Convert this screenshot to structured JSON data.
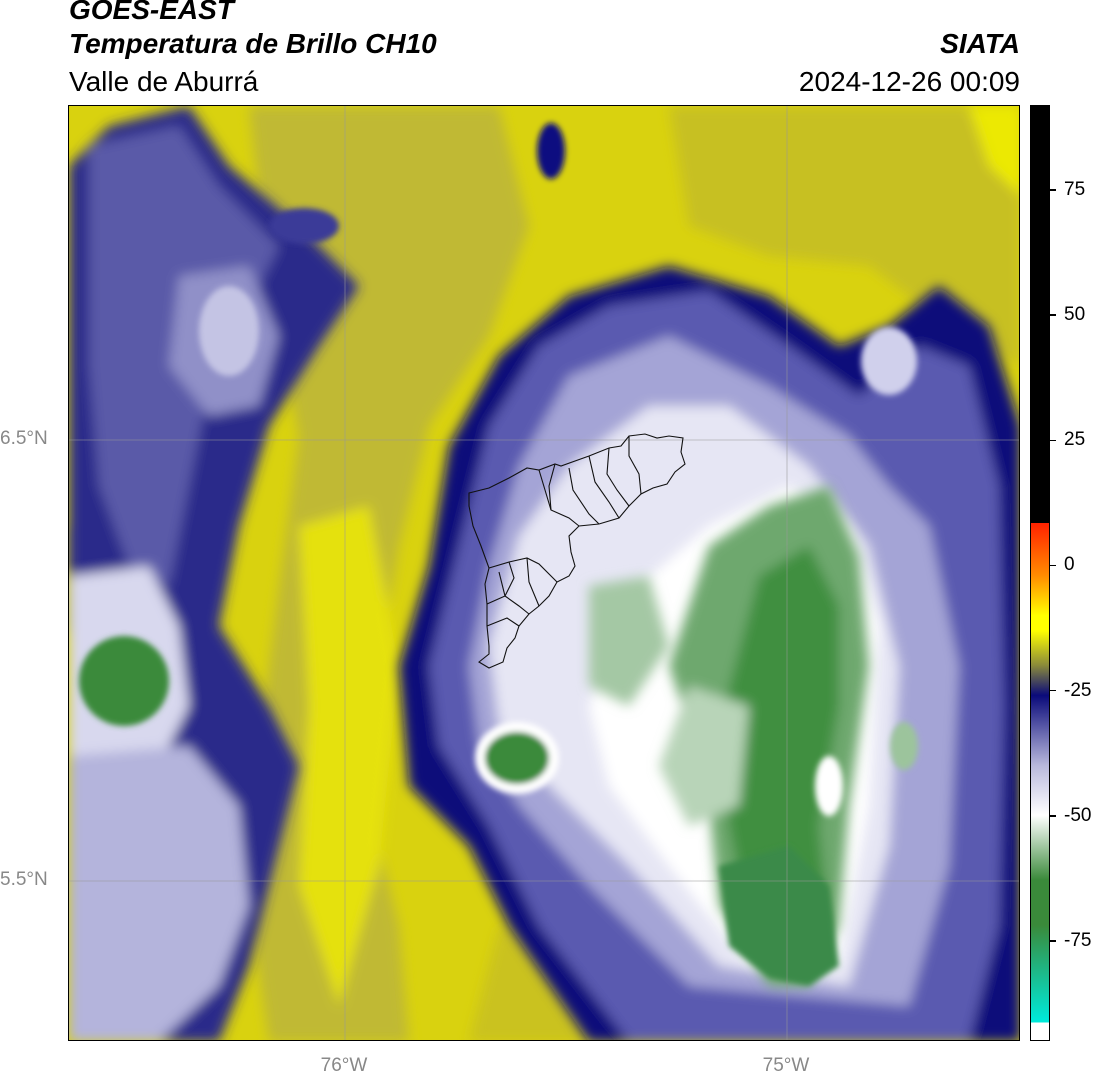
{
  "header": {
    "satellite": "GOES-EAST",
    "product": "Temperatura de Brillo CH10",
    "region": "Valle de Aburrá",
    "agency": "SIATA",
    "datetime": "2024-12-26 00:09"
  },
  "map": {
    "lat_labels": [
      "6.5°N",
      "5.5°N"
    ],
    "lon_labels": [
      "76°W",
      "75°W"
    ]
  },
  "colorbar": {
    "ticks": [
      "75",
      "50",
      "25",
      "0",
      "-25",
      "-50",
      "-75"
    ],
    "tick_values": [
      75,
      50,
      25,
      0,
      -25,
      -50,
      -75
    ],
    "range": [
      -95,
      92
    ],
    "colors": {
      "black": "#000000",
      "red": "#ff2200",
      "orange": "#ff8c00",
      "yellow": "#ffff00",
      "olive": "#8a8a3a",
      "navy": "#0a0a7a",
      "lavender": "#b8b8dc",
      "white": "#ffffff",
      "green": "#3a8a3a",
      "cyan": "#00e8d8"
    }
  }
}
